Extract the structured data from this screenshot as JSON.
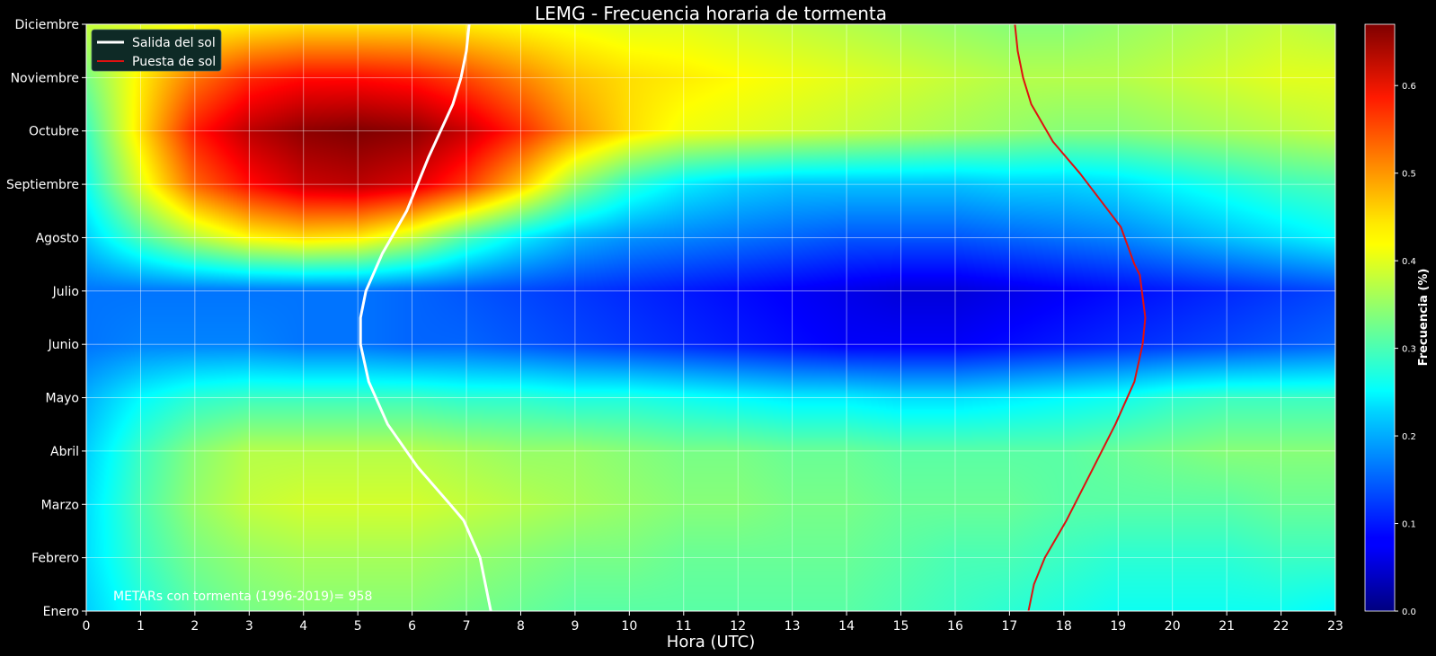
{
  "chart_data": {
    "type": "heatmap",
    "title": "LEMG - Frecuencia horaria de tormenta",
    "xlabel": "Hora (UTC)",
    "x_ticks": [
      0,
      1,
      2,
      3,
      4,
      5,
      6,
      7,
      8,
      9,
      10,
      11,
      12,
      13,
      14,
      15,
      16,
      17,
      18,
      19,
      20,
      21,
      22,
      23
    ],
    "xlim": [
      0,
      23
    ],
    "y_ticks": [
      "Enero",
      "Febrero",
      "Marzo",
      "Abril",
      "Mayo",
      "Junio",
      "Julio",
      "Agosto",
      "Septiembre",
      "Octubre",
      "Noviembre",
      "Diciembre"
    ],
    "colorscale": "jet",
    "grid": true,
    "colorbar": {
      "label": "Frecuencia (%)",
      "range": [
        0.0,
        0.67
      ],
      "ticks": [
        "0.0",
        "0.1",
        "0.2",
        "0.3",
        "0.4",
        "0.5",
        "0.6"
      ]
    },
    "annotation": "METARs con tormenta (1996-2019)= 958",
    "legend_position": "top-left",
    "series": [
      {
        "name": "Salida del sol",
        "color": "#ffffff",
        "points": [
          [
            7.45,
            1
          ],
          [
            7.35,
            1.5
          ],
          [
            7.25,
            2
          ],
          [
            6.95,
            2.7
          ],
          [
            6.7,
            3
          ],
          [
            6.1,
            3.7
          ],
          [
            5.55,
            4.5
          ],
          [
            5.2,
            5.3
          ],
          [
            5.05,
            6
          ],
          [
            5.05,
            6.5
          ],
          [
            5.15,
            7
          ],
          [
            5.45,
            7.7
          ],
          [
            5.9,
            8.5
          ],
          [
            6.3,
            9.5
          ],
          [
            6.75,
            10.5
          ],
          [
            6.9,
            11
          ],
          [
            7.0,
            11.5
          ],
          [
            7.05,
            12
          ]
        ]
      },
      {
        "name": "Puesta de sol",
        "color": "#e01010",
        "points": [
          [
            17.35,
            1
          ],
          [
            17.45,
            1.5
          ],
          [
            17.65,
            2
          ],
          [
            18.05,
            2.7
          ],
          [
            18.55,
            3.7
          ],
          [
            18.95,
            4.5
          ],
          [
            19.3,
            5.3
          ],
          [
            19.45,
            6
          ],
          [
            19.5,
            6.5
          ],
          [
            19.4,
            7.3
          ],
          [
            19.3,
            7.5
          ],
          [
            19.05,
            8.2
          ],
          [
            18.75,
            8.6
          ],
          [
            18.3,
            9.2
          ],
          [
            17.8,
            9.8
          ],
          [
            17.4,
            10.5
          ],
          [
            17.25,
            11
          ],
          [
            17.15,
            11.5
          ],
          [
            17.1,
            12
          ]
        ]
      }
    ],
    "field_y_rows": [
      1,
      2,
      3,
      4,
      5,
      6,
      7,
      8,
      9,
      10,
      11,
      12
    ],
    "field": [
      [
        0.22,
        0.27,
        0.31,
        0.33,
        0.34,
        0.34,
        0.34,
        0.33,
        0.32,
        0.31,
        0.31,
        0.31,
        0.31,
        0.31,
        0.31,
        0.3,
        0.29,
        0.28,
        0.27,
        0.26,
        0.26,
        0.26,
        0.26,
        0.25
      ],
      [
        0.23,
        0.29,
        0.33,
        0.35,
        0.36,
        0.36,
        0.36,
        0.35,
        0.34,
        0.33,
        0.33,
        0.32,
        0.32,
        0.32,
        0.32,
        0.31,
        0.3,
        0.3,
        0.29,
        0.28,
        0.28,
        0.28,
        0.29,
        0.29
      ],
      [
        0.23,
        0.3,
        0.35,
        0.38,
        0.39,
        0.39,
        0.39,
        0.38,
        0.37,
        0.36,
        0.35,
        0.34,
        0.34,
        0.33,
        0.33,
        0.32,
        0.32,
        0.32,
        0.31,
        0.31,
        0.31,
        0.31,
        0.32,
        0.32
      ],
      [
        0.22,
        0.29,
        0.34,
        0.37,
        0.37,
        0.37,
        0.37,
        0.36,
        0.35,
        0.35,
        0.34,
        0.33,
        0.33,
        0.32,
        0.32,
        0.31,
        0.31,
        0.31,
        0.31,
        0.32,
        0.33,
        0.34,
        0.34,
        0.34
      ],
      [
        0.2,
        0.25,
        0.28,
        0.29,
        0.29,
        0.29,
        0.29,
        0.28,
        0.28,
        0.27,
        0.27,
        0.26,
        0.25,
        0.24,
        0.24,
        0.23,
        0.23,
        0.24,
        0.25,
        0.26,
        0.28,
        0.29,
        0.29,
        0.29
      ],
      [
        0.16,
        0.17,
        0.17,
        0.17,
        0.16,
        0.16,
        0.15,
        0.15,
        0.14,
        0.13,
        0.12,
        0.11,
        0.1,
        0.09,
        0.08,
        0.08,
        0.08,
        0.09,
        0.1,
        0.11,
        0.12,
        0.13,
        0.14,
        0.15
      ],
      [
        0.16,
        0.16,
        0.16,
        0.16,
        0.16,
        0.16,
        0.15,
        0.14,
        0.13,
        0.12,
        0.11,
        0.1,
        0.09,
        0.08,
        0.07,
        0.06,
        0.06,
        0.07,
        0.08,
        0.09,
        0.1,
        0.11,
        0.12,
        0.13
      ],
      [
        0.22,
        0.3,
        0.37,
        0.42,
        0.44,
        0.43,
        0.38,
        0.3,
        0.24,
        0.2,
        0.18,
        0.17,
        0.16,
        0.15,
        0.14,
        0.14,
        0.14,
        0.15,
        0.16,
        0.17,
        0.19,
        0.21,
        0.23,
        0.25
      ],
      [
        0.26,
        0.4,
        0.52,
        0.58,
        0.62,
        0.63,
        0.61,
        0.55,
        0.46,
        0.35,
        0.28,
        0.24,
        0.22,
        0.21,
        0.21,
        0.21,
        0.21,
        0.22,
        0.22,
        0.23,
        0.25,
        0.27,
        0.29,
        0.3
      ],
      [
        0.29,
        0.44,
        0.57,
        0.63,
        0.66,
        0.67,
        0.66,
        0.62,
        0.56,
        0.49,
        0.44,
        0.41,
        0.4,
        0.39,
        0.38,
        0.37,
        0.36,
        0.35,
        0.34,
        0.34,
        0.35,
        0.36,
        0.37,
        0.38
      ],
      [
        0.33,
        0.43,
        0.51,
        0.56,
        0.58,
        0.58,
        0.57,
        0.54,
        0.5,
        0.46,
        0.44,
        0.43,
        0.42,
        0.41,
        0.4,
        0.39,
        0.38,
        0.37,
        0.37,
        0.37,
        0.38,
        0.39,
        0.4,
        0.4
      ],
      [
        0.38,
        0.4,
        0.42,
        0.43,
        0.44,
        0.44,
        0.44,
        0.43,
        0.42,
        0.41,
        0.4,
        0.4,
        0.39,
        0.38,
        0.37,
        0.36,
        0.35,
        0.34,
        0.34,
        0.35,
        0.36,
        0.37,
        0.38,
        0.37
      ]
    ]
  }
}
